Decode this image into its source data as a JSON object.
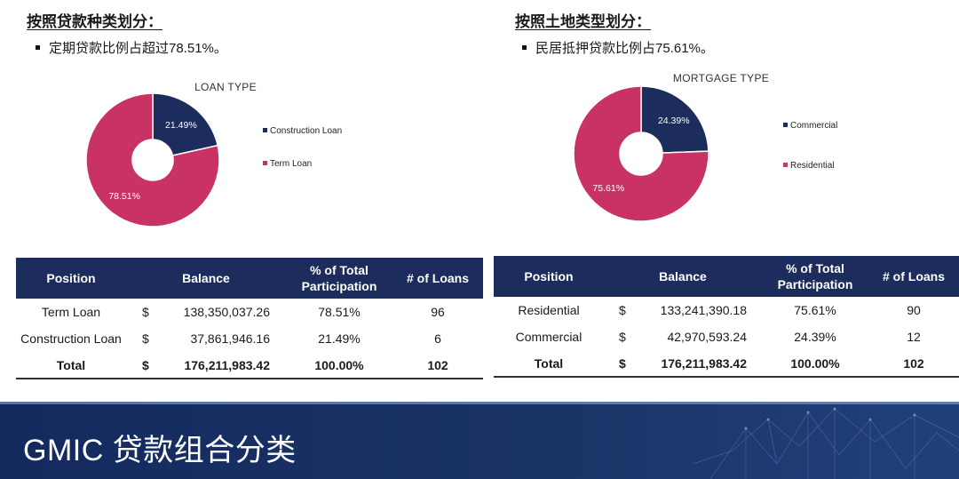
{
  "left_panel": {
    "heading": "按照贷款种类划分：",
    "bullet": "定期贷款比例占超过78.51%。",
    "table": {
      "headers": [
        "Position",
        "Balance",
        "% of Total Participation",
        "# of Loans"
      ],
      "rows": [
        {
          "position": "Term Loan",
          "currency": "$",
          "balance": "138,350,037.26",
          "pct": "78.51%",
          "loans": "96"
        },
        {
          "position": "Construction Loan",
          "currency": "$",
          "balance": "37,861,946.16",
          "pct": "21.49%",
          "loans": "6"
        }
      ],
      "total": {
        "position": "Total",
        "currency": "$",
        "balance": "176,211,983.42",
        "pct": "100.00%",
        "loans": "102"
      }
    }
  },
  "right_panel": {
    "heading": "按照土地类型划分：",
    "bullet": "民居抵押贷款比例占75.61%。",
    "table": {
      "headers": [
        "Position",
        "Balance",
        "% of Total Participation",
        "# of Loans"
      ],
      "rows": [
        {
          "position": "Residential",
          "currency": "$",
          "balance": "133,241,390.18",
          "pct": "75.61%",
          "loans": "90"
        },
        {
          "position": "Commercial",
          "currency": "$",
          "balance": "42,970,593.24",
          "pct": "24.39%",
          "loans": "12"
        }
      ],
      "total": {
        "position": "Total",
        "currency": "$",
        "balance": "176,211,983.42",
        "pct": "100.00%",
        "loans": "102"
      }
    }
  },
  "footer": {
    "title": "GMIC 贷款组合分类"
  },
  "colors": {
    "navy": "#1c2c5c",
    "crimson": "#c83264",
    "header_bg": "#1c2c5c",
    "footer_bg": "#142a5e"
  },
  "chart_data": [
    {
      "type": "pie",
      "title": "LOAN TYPE",
      "series": [
        {
          "name": "Construction Loan",
          "value": 21.49,
          "label": "21.49%",
          "color": "#1c2c5c"
        },
        {
          "name": "Term Loan",
          "value": 78.51,
          "label": "78.51%",
          "color": "#c83264"
        }
      ],
      "legend": "right"
    },
    {
      "type": "pie",
      "title": "MORTGAGE TYPE",
      "series": [
        {
          "name": "Commercial",
          "value": 24.39,
          "label": "24.39%",
          "color": "#1c2c5c"
        },
        {
          "name": "Residential",
          "value": 75.61,
          "label": "75.61%",
          "color": "#c83264"
        }
      ],
      "legend": "right"
    }
  ]
}
